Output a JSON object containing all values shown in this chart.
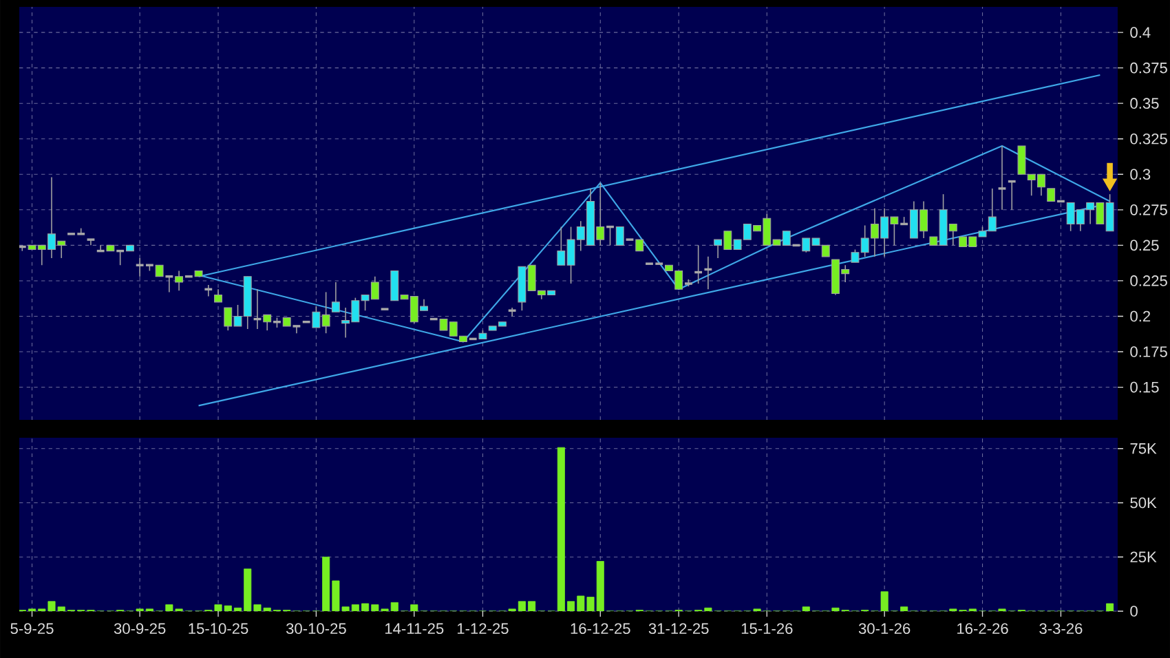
{
  "chart_data": [
    {
      "type": "candlestick",
      "categories": [
        null,
        null,
        null,
        null,
        null,
        null,
        null,
        null,
        null,
        null,
        null,
        null,
        null,
        null,
        null,
        null,
        null,
        null,
        null,
        null,
        null,
        null,
        null,
        null,
        null,
        null,
        null,
        null,
        null,
        null,
        null,
        null,
        null,
        null,
        null,
        null,
        null,
        null,
        null,
        null,
        null,
        null,
        null,
        null,
        null,
        null,
        null,
        null,
        null,
        null,
        null,
        null,
        null,
        null,
        null,
        null,
        null,
        null,
        null,
        null,
        null,
        null,
        null,
        null,
        null,
        null,
        null,
        null,
        null,
        null,
        null,
        null,
        null,
        null,
        null,
        null,
        null,
        null,
        null,
        null,
        null,
        null,
        null,
        null,
        null,
        null,
        null,
        null,
        null,
        null,
        null,
        null,
        null,
        null,
        null,
        null,
        null,
        null,
        null,
        null,
        null,
        null,
        null,
        null,
        null,
        null,
        null,
        null,
        null,
        null,
        null,
        null
      ],
      "ohlc": [
        [
          0.249,
          0.25,
          0.246,
          0.249
        ],
        [
          0.25,
          0.25,
          0.247,
          0.247
        ],
        [
          0.25,
          0.25,
          0.236,
          0.247
        ],
        [
          0.247,
          0.298,
          0.241,
          0.258
        ],
        [
          0.253,
          0.253,
          0.241,
          0.25
        ],
        [
          0.258,
          0.258,
          0.258,
          0.258
        ],
        [
          0.258,
          0.262,
          0.258,
          0.258
        ],
        [
          0.254,
          0.254,
          0.25,
          0.254
        ],
        [
          0.246,
          0.25,
          0.246,
          0.246
        ],
        [
          0.25,
          0.25,
          0.246,
          0.246
        ],
        [
          0.246,
          0.246,
          0.236,
          0.246
        ],
        [
          0.246,
          0.25,
          0.246,
          0.25
        ],
        [
          0.236,
          0.241,
          0.228,
          0.236
        ],
        [
          0.236,
          0.236,
          0.232,
          0.236
        ],
        [
          0.236,
          0.236,
          0.228,
          0.228
        ],
        [
          0.228,
          0.228,
          0.217,
          0.228
        ],
        [
          0.228,
          0.232,
          0.218,
          0.224
        ],
        [
          0.228,
          0.228,
          0.228,
          0.228
        ],
        [
          0.232,
          0.232,
          0.228,
          0.228
        ],
        [
          0.219,
          0.222,
          0.214,
          0.219
        ],
        [
          0.215,
          0.219,
          0.21,
          0.21
        ],
        [
          0.206,
          0.206,
          0.19,
          0.193
        ],
        [
          0.193,
          0.208,
          0.193,
          0.2
        ],
        [
          0.2,
          0.228,
          0.191,
          0.228
        ],
        [
          0.198,
          0.219,
          0.191,
          0.198
        ],
        [
          0.201,
          0.201,
          0.19,
          0.196
        ],
        [
          0.196,
          0.199,
          0.192,
          0.196
        ],
        [
          0.199,
          0.199,
          0.193,
          0.193
        ],
        [
          0.193,
          0.193,
          0.188,
          0.193
        ],
        [
          0.196,
          0.196,
          0.196,
          0.196
        ],
        [
          0.192,
          0.207,
          0.192,
          0.203
        ],
        [
          0.201,
          0.217,
          0.188,
          0.193
        ],
        [
          0.203,
          0.224,
          0.203,
          0.21
        ],
        [
          0.195,
          0.206,
          0.185,
          0.197
        ],
        [
          0.196,
          0.213,
          0.196,
          0.211
        ],
        [
          0.211,
          0.215,
          0.204,
          0.215
        ],
        [
          0.224,
          0.228,
          0.212,
          0.212
        ],
        [
          0.205,
          0.205,
          0.205,
          0.205
        ],
        [
          0.211,
          0.232,
          0.211,
          0.232
        ],
        [
          0.215,
          0.215,
          0.212,
          0.212
        ],
        [
          0.214,
          0.214,
          0.195,
          0.196
        ],
        [
          0.204,
          0.212,
          0.204,
          0.207
        ],
        [
          0.198,
          0.198,
          0.198,
          0.198
        ],
        [
          0.198,
          0.198,
          0.19,
          0.19
        ],
        [
          0.196,
          0.196,
          0.186,
          0.186
        ],
        [
          0.186,
          0.186,
          0.182,
          0.182
        ],
        [
          0.184,
          0.184,
          0.184,
          0.184
        ],
        [
          0.184,
          0.19,
          0.184,
          0.188
        ],
        [
          0.19,
          0.193,
          0.19,
          0.193
        ],
        [
          0.193,
          0.196,
          0.193,
          0.196
        ],
        [
          0.204,
          0.206,
          0.2,
          0.204
        ],
        [
          0.21,
          0.235,
          0.204,
          0.235
        ],
        [
          0.236,
          0.236,
          0.218,
          0.218
        ],
        [
          0.218,
          0.218,
          0.212,
          0.215
        ],
        [
          0.215,
          0.218,
          0.215,
          0.218
        ],
        [
          0.236,
          0.263,
          0.236,
          0.246
        ],
        [
          0.236,
          0.263,
          0.223,
          0.254
        ],
        [
          0.254,
          0.267,
          0.246,
          0.263
        ],
        [
          0.25,
          0.29,
          0.25,
          0.281
        ],
        [
          0.263,
          0.294,
          0.25,
          0.254
        ],
        [
          0.263,
          0.263,
          0.25,
          0.263
        ],
        [
          0.25,
          0.263,
          0.25,
          0.263
        ],
        [
          0.254,
          0.254,
          0.254,
          0.254
        ],
        [
          0.254,
          0.254,
          0.246,
          0.246
        ],
        [
          0.237,
          0.237,
          0.237,
          0.237
        ],
        [
          0.237,
          0.237,
          0.237,
          0.237
        ],
        [
          0.236,
          0.236,
          0.232,
          0.232
        ],
        [
          0.232,
          0.232,
          0.219,
          0.219
        ],
        [
          0.223,
          0.226,
          0.221,
          0.223
        ],
        [
          0.231,
          0.25,
          0.223,
          0.231
        ],
        [
          0.233,
          0.242,
          0.219,
          0.233
        ],
        [
          0.25,
          0.254,
          0.241,
          0.254
        ],
        [
          0.26,
          0.26,
          0.247,
          0.247
        ],
        [
          0.247,
          0.254,
          0.247,
          0.254
        ],
        [
          0.254,
          0.265,
          0.254,
          0.265
        ],
        [
          0.264,
          0.264,
          0.26,
          0.26
        ],
        [
          0.269,
          0.272,
          0.25,
          0.25
        ],
        [
          0.254,
          0.254,
          0.25,
          0.25
        ],
        [
          0.25,
          0.26,
          0.25,
          0.26
        ],
        [
          0.25,
          0.25,
          0.25,
          0.25
        ],
        [
          0.246,
          0.255,
          0.245,
          0.255
        ],
        [
          0.25,
          0.255,
          0.25,
          0.255
        ],
        [
          0.25,
          0.25,
          0.242,
          0.242
        ],
        [
          0.24,
          0.24,
          0.215,
          0.216
        ],
        [
          0.233,
          0.236,
          0.224,
          0.23
        ],
        [
          0.238,
          0.247,
          0.238,
          0.245
        ],
        [
          0.245,
          0.264,
          0.242,
          0.255
        ],
        [
          0.265,
          0.276,
          0.242,
          0.255
        ],
        [
          0.255,
          0.276,
          0.242,
          0.27
        ],
        [
          0.27,
          0.27,
          0.25,
          0.265
        ],
        [
          0.265,
          0.27,
          0.265,
          0.265
        ],
        [
          0.255,
          0.281,
          0.255,
          0.275
        ],
        [
          0.275,
          0.281,
          0.255,
          0.26
        ],
        [
          0.256,
          0.256,
          0.25,
          0.25
        ],
        [
          0.25,
          0.286,
          0.25,
          0.275
        ],
        [
          0.265,
          0.265,
          0.25,
          0.26
        ],
        [
          0.256,
          0.256,
          0.249,
          0.249
        ],
        [
          0.256,
          0.256,
          0.249,
          0.249
        ],
        [
          0.256,
          0.263,
          0.256,
          0.26
        ],
        [
          0.26,
          0.29,
          0.26,
          0.27
        ],
        [
          0.29,
          0.32,
          0.275,
          0.29
        ],
        [
          0.295,
          0.295,
          0.275,
          0.295
        ],
        [
          0.32,
          0.32,
          0.3,
          0.3
        ],
        [
          0.3,
          0.3,
          0.285,
          0.296
        ],
        [
          0.3,
          0.3,
          0.285,
          0.291
        ],
        [
          0.29,
          0.29,
          0.281,
          0.281
        ],
        [
          0.281,
          0.281,
          0.281,
          0.281
        ],
        [
          0.265,
          0.28,
          0.26,
          0.28
        ],
        [
          0.265,
          0.275,
          0.26,
          0.275
        ],
        [
          0.275,
          0.28,
          0.265,
          0.28
        ],
        [
          0.28,
          0.28,
          0.265,
          0.265
        ],
        [
          0.26,
          0.286,
          0.26,
          0.28
        ]
      ],
      "colors": [
        "#a8a8a8",
        "#77ee22",
        "#77ee22",
        "#22e0f0",
        "#77ee22",
        "#a8a8a8",
        "#a8a8a8",
        "#a8a8a8",
        "#a8a8a8",
        "#77ee22",
        "#a8a8a8",
        "#22e0f0",
        "#a8a8a8",
        "#a8a8a8",
        "#77ee22",
        "#a8a8a8",
        "#77ee22",
        "#a8a8a8",
        "#77ee22",
        "#a8a8a8",
        "#77ee22",
        "#77ee22",
        "#22e0f0",
        "#22e0f0",
        "#a8a8a8",
        "#77ee22",
        "#a8a8a8",
        "#77ee22",
        "#a8a8a8",
        "#a8a8a8",
        "#22e0f0",
        "#77ee22",
        "#22e0f0",
        "#22e0f0",
        "#22e0f0",
        "#22e0f0",
        "#77ee22",
        "#a8a8a8",
        "#22e0f0",
        "#77ee22",
        "#77ee22",
        "#22e0f0",
        "#a8a8a8",
        "#77ee22",
        "#77ee22",
        "#77ee22",
        "#a8a8a8",
        "#22e0f0",
        "#22e0f0",
        "#22e0f0",
        "#a8a8a8",
        "#22e0f0",
        "#77ee22",
        "#77ee22",
        "#22e0f0",
        "#22e0f0",
        "#22e0f0",
        "#22e0f0",
        "#22e0f0",
        "#77ee22",
        "#a8a8a8",
        "#22e0f0",
        "#a8a8a8",
        "#77ee22",
        "#a8a8a8",
        "#a8a8a8",
        "#77ee22",
        "#77ee22",
        "#a8a8a8",
        "#a8a8a8",
        "#a8a8a8",
        "#22e0f0",
        "#77ee22",
        "#22e0f0",
        "#22e0f0",
        "#77ee22",
        "#77ee22",
        "#77ee22",
        "#22e0f0",
        "#a8a8a8",
        "#22e0f0",
        "#22e0f0",
        "#77ee22",
        "#77ee22",
        "#77ee22",
        "#22e0f0",
        "#22e0f0",
        "#77ee22",
        "#22e0f0",
        "#77ee22",
        "#a8a8a8",
        "#22e0f0",
        "#77ee22",
        "#77ee22",
        "#22e0f0",
        "#77ee22",
        "#77ee22",
        "#77ee22",
        "#22e0f0",
        "#22e0f0",
        "#a8a8a8",
        "#a8a8a8",
        "#77ee22",
        "#77ee22",
        "#77ee22",
        "#77ee22",
        "#a8a8a8",
        "#22e0f0",
        "#22e0f0",
        "#22e0f0",
        "#77ee22",
        "#22e0f0"
      ],
      "series": [
        {
          "type": "line",
          "color": "#3fa8e8",
          "values": [
            null,
            null,
            null,
            null,
            null,
            null,
            null,
            null,
            null,
            null,
            null,
            null,
            null,
            null,
            null,
            null,
            null,
            null,
            0.228,
            null,
            null,
            null,
            null,
            null,
            null,
            null,
            null,
            null,
            null,
            null,
            null,
            null,
            null,
            null,
            null,
            null,
            null,
            null,
            null,
            null,
            null,
            null,
            null,
            null,
            null,
            null,
            null,
            null,
            null,
            null,
            null,
            null,
            null,
            null,
            null,
            null,
            null,
            null,
            null,
            null,
            null,
            null,
            null,
            null,
            null,
            null,
            null,
            null,
            null,
            null,
            null,
            null,
            null,
            null,
            null,
            null,
            null,
            null,
            null,
            null,
            null,
            null,
            null,
            null,
            null,
            null,
            null,
            null,
            null,
            null,
            null,
            null,
            null,
            null,
            null,
            null,
            null,
            null,
            null,
            null,
            null,
            null,
            null,
            null,
            null,
            null,
            null,
            null,
            null,
            null,
            0.37,
            null
          ]
        },
        {
          "type": "line",
          "color": "#3fa8e8",
          "values": [
            null,
            null,
            null,
            null,
            null,
            null,
            null,
            null,
            null,
            null,
            null,
            null,
            null,
            null,
            null,
            null,
            null,
            null,
            0.137,
            null,
            null,
            null,
            null,
            null,
            null,
            null,
            null,
            null,
            null,
            null,
            null,
            null,
            null,
            null,
            null,
            null,
            null,
            null,
            null,
            null,
            null,
            null,
            null,
            null,
            null,
            null,
            null,
            null,
            null,
            null,
            null,
            null,
            null,
            null,
            null,
            null,
            null,
            null,
            null,
            null,
            null,
            null,
            null,
            null,
            null,
            null,
            null,
            null,
            null,
            null,
            null,
            null,
            null,
            null,
            null,
            null,
            null,
            null,
            null,
            null,
            null,
            null,
            null,
            null,
            null,
            null,
            null,
            null,
            null,
            null,
            null,
            null,
            null,
            null,
            null,
            null,
            null,
            null,
            null,
            null,
            null,
            null,
            null,
            null,
            null,
            null,
            null,
            null,
            null,
            null,
            0.278,
            null
          ]
        },
        {
          "type": "line",
          "color": "#3fa8e8",
          "values": [
            null,
            null,
            null,
            null,
            null,
            null,
            null,
            null,
            null,
            null,
            null,
            null,
            null,
            null,
            null,
            null,
            null,
            null,
            0.229,
            null,
            null,
            null,
            null,
            null,
            null,
            null,
            null,
            null,
            null,
            null,
            null,
            null,
            null,
            null,
            null,
            null,
            null,
            null,
            null,
            null,
            null,
            null,
            null,
            null,
            null,
            0.182,
            null,
            null,
            null,
            null,
            null,
            null,
            null,
            null,
            null,
            null,
            null,
            null,
            null,
            0.294,
            null,
            null,
            null,
            null,
            null,
            null,
            null,
            0.219,
            null,
            null,
            null,
            null,
            null,
            null,
            null,
            null,
            null,
            null,
            0.255,
            null,
            null,
            null,
            null,
            null,
            null,
            null,
            null,
            null,
            null,
            null,
            null,
            null,
            null,
            null,
            null,
            null,
            null,
            null,
            null,
            null,
            0.32,
            null,
            null,
            null,
            null,
            null,
            null,
            null,
            null,
            null,
            null,
            0.281
          ]
        }
      ],
      "ylim": [
        0.127,
        0.418
      ],
      "yticks": [
        0.15,
        0.175,
        0.2,
        0.225,
        0.25,
        0.275,
        0.3,
        0.325,
        0.35,
        0.375,
        0.4
      ],
      "grid": true,
      "tick_labels": "y"
    },
    {
      "type": "bar",
      "categories": [
        null,
        "5-9-25",
        null,
        null,
        null,
        null,
        null,
        null,
        null,
        null,
        null,
        null,
        "30-9-25",
        null,
        null,
        null,
        null,
        null,
        null,
        null,
        "15-10-25",
        null,
        null,
        null,
        null,
        null,
        null,
        null,
        null,
        null,
        "30-10-25",
        null,
        null,
        null,
        null,
        null,
        null,
        null,
        null,
        null,
        "14-11-25",
        null,
        null,
        null,
        null,
        null,
        null,
        "1-12-25",
        null,
        null,
        null,
        null,
        null,
        null,
        null,
        null,
        null,
        null,
        null,
        "16-12-25",
        null,
        null,
        null,
        null,
        null,
        null,
        null,
        "31-12-25",
        null,
        null,
        null,
        null,
        null,
        null,
        null,
        null,
        "15-1-26",
        null,
        null,
        null,
        null,
        null,
        null,
        null,
        null,
        null,
        null,
        null,
        "30-1-26",
        null,
        null,
        null,
        null,
        null,
        null,
        null,
        null,
        null,
        "16-2-26",
        null,
        null,
        null,
        null,
        null,
        null,
        null,
        "3-3-26",
        null,
        null,
        null,
        null,
        null
      ],
      "values": [
        500,
        1000,
        1000,
        4500,
        2000,
        500,
        500,
        500,
        0,
        0,
        500,
        0,
        1000,
        1000,
        0,
        3000,
        1000,
        0,
        0,
        500,
        3000,
        2500,
        1500,
        19500,
        3000,
        1500,
        500,
        500,
        0,
        0,
        0,
        25000,
        14000,
        2000,
        3000,
        3500,
        3000,
        1000,
        4000,
        0,
        3000,
        0,
        0,
        0,
        0,
        0,
        0,
        0,
        0,
        0,
        1000,
        4500,
        4500,
        0,
        0,
        75500,
        4500,
        7000,
        6500,
        23000,
        0,
        0,
        0,
        500,
        0,
        0,
        0,
        500,
        0,
        500,
        1500,
        0,
        0,
        0,
        0,
        1000,
        0,
        0,
        0,
        0,
        2000,
        0,
        0,
        1500,
        500,
        0,
        500,
        0,
        9000,
        0,
        2000,
        0,
        0,
        0,
        0,
        1000,
        500,
        1000,
        0,
        0,
        1000,
        0,
        500,
        0,
        0,
        0,
        0,
        0,
        0,
        0,
        0,
        3500
      ],
      "color": "#77ee22",
      "ylim": [
        0,
        80000
      ],
      "yticks": [
        0,
        {
          "value": 25000,
          "label": "25K"
        },
        {
          "value": 50000,
          "label": "50K"
        },
        {
          "value": 75000,
          "label": "75K"
        }
      ],
      "grid": true
    }
  ]
}
